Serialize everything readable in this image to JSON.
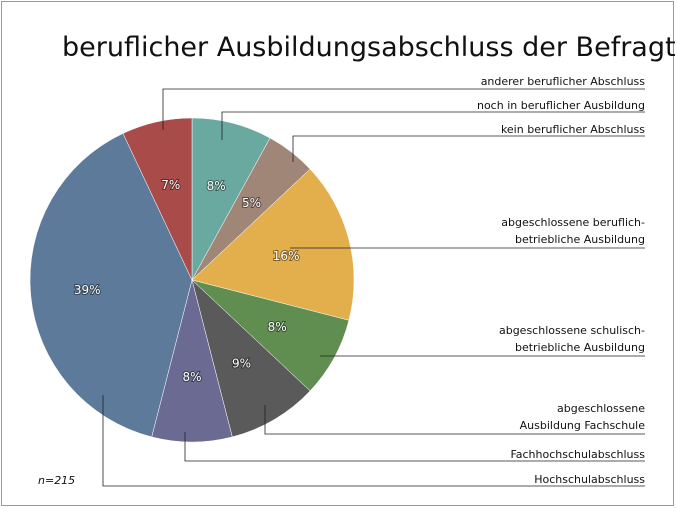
{
  "chart_data": {
    "type": "pie",
    "title": "beruflicher Ausbildungsabschluss der Befragten",
    "note": "n=215",
    "categories": [
      "noch in beruflicher Ausbildung",
      "kein beruflicher Abschluss",
      "abgeschlossene beruflich-\nbetriebliche Ausbildung",
      "abgeschlossene schulisch-\nbetriebliche Ausbildung",
      "abgeschlossene\nAusbildung Fachschule",
      "Fachhochschulabschluss",
      "Hochschulabschluss",
      "anderer beruflicher Abschluss"
    ],
    "values": [
      8,
      5,
      16,
      8,
      9,
      8,
      39,
      7
    ],
    "value_labels": [
      "8%",
      "5%",
      "16%",
      "8%",
      "9%",
      "8%",
      "39%",
      "7%"
    ],
    "colors": [
      "#6aa9a0",
      "#a08676",
      "#e3ae4c",
      "#5f8e50",
      "#5a5a5a",
      "#6b6a93",
      "#5e7a9b",
      "#a84b49"
    ]
  }
}
